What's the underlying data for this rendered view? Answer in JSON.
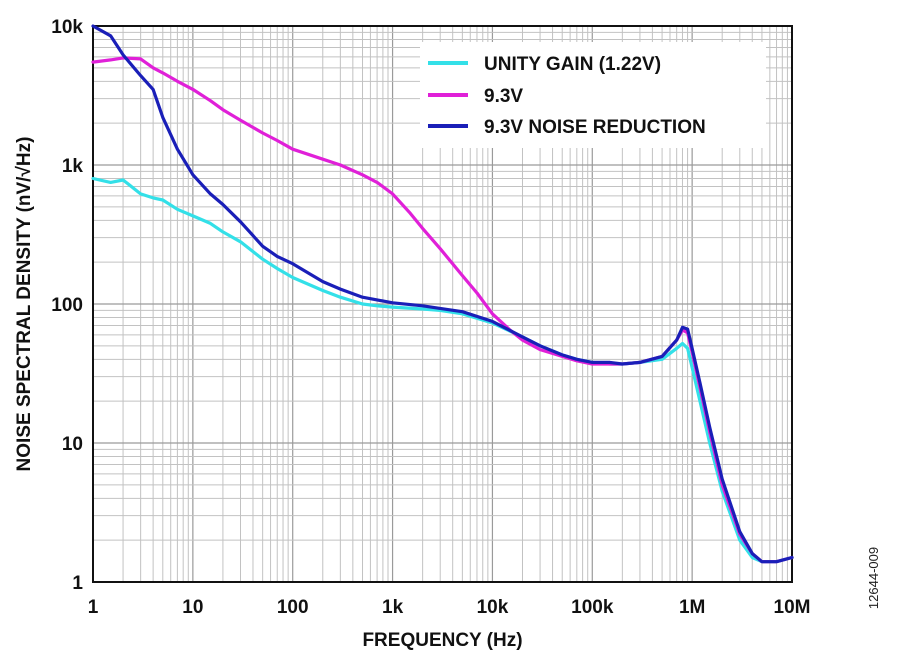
{
  "figure_id": "12644-009",
  "chart_data": {
    "type": "line",
    "title": "",
    "xlabel": "FREQUENCY (Hz)",
    "ylabel": "NOISE SPECTRAL DENSITY (nV/√Hz)",
    "x_scale": "log",
    "y_scale": "log",
    "xlim": [
      1,
      10000000
    ],
    "ylim": [
      1,
      10000
    ],
    "grid": true,
    "legend_position": "top-right",
    "x_ticks": [
      {
        "value": 1,
        "label": "1"
      },
      {
        "value": 10,
        "label": "10"
      },
      {
        "value": 100,
        "label": "100"
      },
      {
        "value": 1000,
        "label": "1k"
      },
      {
        "value": 10000,
        "label": "10k"
      },
      {
        "value": 100000,
        "label": "100k"
      },
      {
        "value": 1000000,
        "label": "1M"
      },
      {
        "value": 10000000,
        "label": "10M"
      }
    ],
    "y_ticks": [
      {
        "value": 1,
        "label": "1"
      },
      {
        "value": 10,
        "label": "10"
      },
      {
        "value": 100,
        "label": "100"
      },
      {
        "value": 1000,
        "label": "1k"
      },
      {
        "value": 10000,
        "label": "10k"
      }
    ],
    "series": [
      {
        "name": "UNITY GAIN (1.22V)",
        "color": "#33E0E8",
        "points": [
          [
            1,
            800
          ],
          [
            1.5,
            750
          ],
          [
            2,
            780
          ],
          [
            3,
            620
          ],
          [
            4,
            580
          ],
          [
            5,
            560
          ],
          [
            7,
            480
          ],
          [
            10,
            430
          ],
          [
            15,
            380
          ],
          [
            20,
            330
          ],
          [
            30,
            280
          ],
          [
            50,
            210
          ],
          [
            70,
            180
          ],
          [
            100,
            155
          ],
          [
            200,
            125
          ],
          [
            300,
            112
          ],
          [
            500,
            100
          ],
          [
            700,
            97
          ],
          [
            1000,
            95
          ],
          [
            2000,
            92
          ],
          [
            3000,
            90
          ],
          [
            5000,
            85
          ],
          [
            10000,
            73
          ],
          [
            20000,
            58
          ],
          [
            30000,
            50
          ],
          [
            50000,
            43
          ],
          [
            70000,
            40
          ],
          [
            100000,
            38
          ],
          [
            150000,
            37
          ],
          [
            200000,
            37
          ],
          [
            300000,
            38
          ],
          [
            500000,
            40
          ],
          [
            700000,
            48
          ],
          [
            800000,
            52
          ],
          [
            900000,
            48
          ],
          [
            1000000,
            35
          ],
          [
            1200000,
            20
          ],
          [
            1500000,
            10
          ],
          [
            2000000,
            4.5
          ],
          [
            3000000,
            2
          ],
          [
            4000000,
            1.5
          ],
          [
            5000000,
            1.4
          ],
          [
            7000000,
            1.4
          ],
          [
            10000000,
            1.5
          ]
        ]
      },
      {
        "name": "9.3V",
        "color": "#E020D8",
        "points": [
          [
            1,
            5500
          ],
          [
            1.5,
            5700
          ],
          [
            2,
            5900
          ],
          [
            3,
            5800
          ],
          [
            4,
            5000
          ],
          [
            5,
            4600
          ],
          [
            7,
            4000
          ],
          [
            10,
            3500
          ],
          [
            15,
            2900
          ],
          [
            20,
            2500
          ],
          [
            30,
            2100
          ],
          [
            50,
            1700
          ],
          [
            70,
            1500
          ],
          [
            100,
            1300
          ],
          [
            200,
            1100
          ],
          [
            300,
            1000
          ],
          [
            500,
            850
          ],
          [
            700,
            750
          ],
          [
            1000,
            620
          ],
          [
            1500,
            450
          ],
          [
            2000,
            350
          ],
          [
            3000,
            250
          ],
          [
            5000,
            160
          ],
          [
            7000,
            120
          ],
          [
            10000,
            85
          ],
          [
            15000,
            65
          ],
          [
            20000,
            55
          ],
          [
            30000,
            47
          ],
          [
            50000,
            42
          ],
          [
            70000,
            39
          ],
          [
            100000,
            37
          ],
          [
            150000,
            37
          ],
          [
            200000,
            37
          ],
          [
            300000,
            38
          ],
          [
            500000,
            42
          ],
          [
            700000,
            55
          ],
          [
            800000,
            65
          ],
          [
            900000,
            62
          ],
          [
            1000000,
            45
          ],
          [
            1200000,
            25
          ],
          [
            1500000,
            12
          ],
          [
            2000000,
            5
          ],
          [
            3000000,
            2.2
          ],
          [
            4000000,
            1.6
          ],
          [
            5000000,
            1.4
          ],
          [
            7000000,
            1.4
          ],
          [
            10000000,
            1.5
          ]
        ]
      },
      {
        "name": "9.3V NOISE REDUCTION",
        "color": "#1A1FB8",
        "points": [
          [
            1,
            10000
          ],
          [
            1.5,
            8500
          ],
          [
            2,
            6200
          ],
          [
            3,
            4400
          ],
          [
            4,
            3500
          ],
          [
            5,
            2200
          ],
          [
            7,
            1300
          ],
          [
            10,
            850
          ],
          [
            15,
            620
          ],
          [
            20,
            520
          ],
          [
            30,
            390
          ],
          [
            50,
            260
          ],
          [
            70,
            220
          ],
          [
            100,
            195
          ],
          [
            200,
            145
          ],
          [
            300,
            128
          ],
          [
            500,
            112
          ],
          [
            700,
            107
          ],
          [
            1000,
            102
          ],
          [
            2000,
            97
          ],
          [
            3000,
            93
          ],
          [
            5000,
            88
          ],
          [
            10000,
            75
          ],
          [
            20000,
            58
          ],
          [
            30000,
            50
          ],
          [
            50000,
            43
          ],
          [
            70000,
            40
          ],
          [
            100000,
            38
          ],
          [
            150000,
            38
          ],
          [
            200000,
            37
          ],
          [
            300000,
            38
          ],
          [
            500000,
            42
          ],
          [
            700000,
            55
          ],
          [
            800000,
            68
          ],
          [
            900000,
            66
          ],
          [
            1000000,
            48
          ],
          [
            1200000,
            27
          ],
          [
            1500000,
            13
          ],
          [
            2000000,
            5.5
          ],
          [
            3000000,
            2.3
          ],
          [
            4000000,
            1.6
          ],
          [
            5000000,
            1.4
          ],
          [
            7000000,
            1.4
          ],
          [
            10000000,
            1.5
          ]
        ]
      }
    ]
  }
}
